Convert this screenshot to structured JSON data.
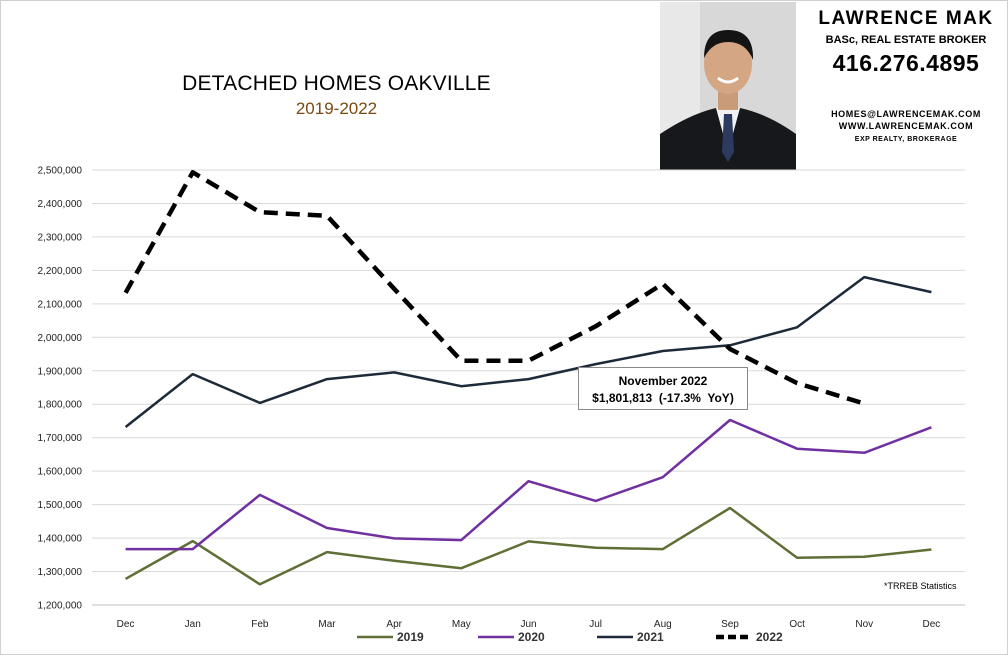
{
  "header": {
    "title": "DETACHED HOMES OAKVILLE",
    "subtitle": "2019-2022"
  },
  "agent": {
    "name": "LAWRENCE MAK",
    "title": "BASc, REAL ESTATE BROKER",
    "phone": "416.276.4895",
    "email": "HOMES@LAWRENCEMAK.COM",
    "website": "WWW.LAWRENCEMAK.COM",
    "brokerage": "EXP REALTY, BROKERAGE"
  },
  "callout": {
    "line1": "November 2022",
    "line2": "$1,801,813  (-17.3%  YoY)"
  },
  "source_note": "*TRREB Statistics",
  "colors": {
    "2019": "#5f6f35",
    "2020": "#7030a0",
    "2021": "#1c2a3a",
    "2022": "#000000",
    "grid": "#d9d9d9"
  },
  "chart_data": {
    "type": "line",
    "title": "DETACHED HOMES OAKVILLE",
    "subtitle": "2019-2022",
    "xlabel": "",
    "ylabel": "",
    "categories": [
      "Dec",
      "Jan",
      "Feb",
      "Mar",
      "Apr",
      "May",
      "Jun",
      "Jul",
      "Aug",
      "Sep",
      "Oct",
      "Nov",
      "Dec"
    ],
    "ylim": [
      1200000,
      2500000
    ],
    "yticks": [
      1200000,
      1300000,
      1400000,
      1500000,
      1600000,
      1700000,
      1800000,
      1900000,
      2000000,
      2100000,
      2200000,
      2300000,
      2400000,
      2500000
    ],
    "ytick_labels": [
      "1,200,000",
      "1,300,000",
      "1,400,000",
      "1,500,000",
      "1,600,000",
      "1,700,000",
      "1,800,000",
      "1,900,000",
      "2,000,000",
      "2,100,000",
      "2,200,000",
      "2,300,000",
      "2,400,000",
      "2,500,000"
    ],
    "grid": true,
    "legend": "bottom",
    "series": [
      {
        "name": "2019",
        "style": "solid",
        "values": [
          1278000,
          1391000,
          1262000,
          1358000,
          1332000,
          1310000,
          1390000,
          1371000,
          1367000,
          1490000,
          1341000,
          1344000,
          1366000
        ]
      },
      {
        "name": "2020",
        "style": "solid",
        "values": [
          1367000,
          1367000,
          1529000,
          1430000,
          1399000,
          1394000,
          1570000,
          1511000,
          1582000,
          1753000,
          1667000,
          1655000,
          1731000
        ]
      },
      {
        "name": "2021",
        "style": "solid",
        "values": [
          1732000,
          1890000,
          1804000,
          1875000,
          1895000,
          1854000,
          1875000,
          1920000,
          1959000,
          1976000,
          2030000,
          2180000,
          2135000
        ]
      },
      {
        "name": "2022",
        "style": "dashed",
        "values": [
          2133000,
          2493000,
          2374000,
          2363000,
          2145000,
          1930000,
          1930000,
          2033000,
          2160000,
          1965000,
          1863000,
          1801813,
          null
        ]
      }
    ],
    "annotations": [
      {
        "text": "November 2022",
        "detail": "$1,801,813  (-17.3%  YoY)",
        "x": "Nov",
        "y": 1801813
      }
    ]
  }
}
